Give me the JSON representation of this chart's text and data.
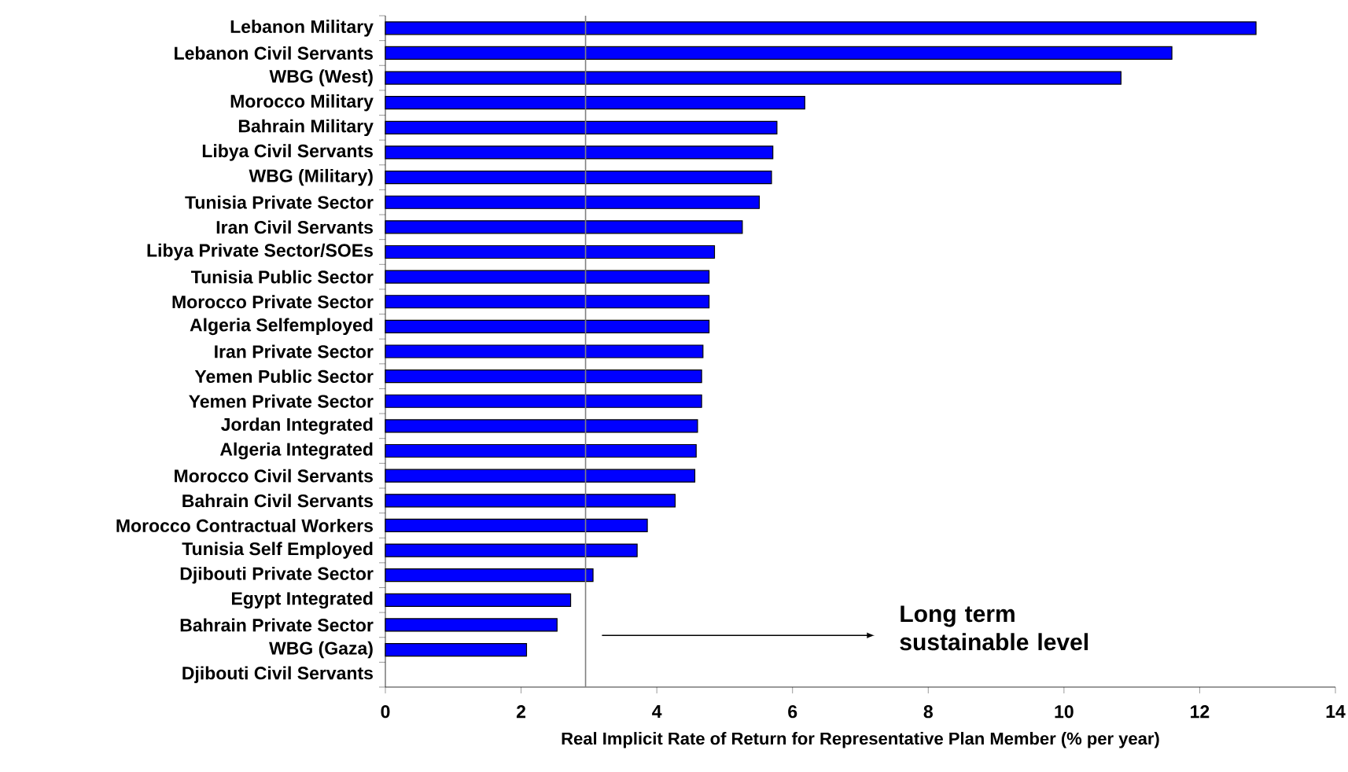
{
  "chart_data": {
    "type": "bar",
    "orientation": "horizontal",
    "xlabel": "Real Implicit Rate of Return for Representative Plan Member (% per year)",
    "categories": [
      "Lebanon Military",
      "Lebanon Civil Servants",
      "WBG (West)",
      "Morocco Military",
      "Bahrain Military",
      "Libya Civil Servants",
      "WBG (Military)",
      "Tunisia Private Sector",
      "Iran Civil Servants",
      "Libya Private Sector/SOEs",
      "Tunisia Public Sector",
      "Morocco Private Sector",
      "Algeria Selfemployed",
      "Iran Private Sector",
      "Yemen Public Sector",
      "Yemen Private Sector",
      "Jordan Integrated",
      "Algeria Integrated",
      "Morocco Civil Servants",
      "Bahrain Civil Servants",
      "Morocco Contractual Workers",
      "Tunisia Self Employed",
      "Djibouti Private Sector",
      "Egypt Integrated",
      "Bahrain Private Sector",
      "WBG (Gaza)",
      "Djibouti Civil Servants"
    ],
    "values": [
      12.83,
      11.59,
      10.84,
      6.18,
      5.77,
      5.71,
      5.69,
      5.51,
      5.26,
      4.85,
      4.77,
      4.77,
      4.77,
      4.68,
      4.66,
      4.66,
      4.6,
      4.58,
      4.56,
      4.27,
      3.86,
      3.71,
      3.06,
      2.73,
      2.53,
      2.08,
      null
    ],
    "color": "#0000ff",
    "xlim": [
      0,
      14
    ],
    "xticks": [
      0,
      2,
      4,
      6,
      8,
      10,
      12,
      14
    ],
    "ref_lines": [
      {
        "axis": "x",
        "value": 2.95,
        "color": "#808080"
      }
    ],
    "annotations": [
      "Long term sustainable level"
    ],
    "grid": false
  }
}
